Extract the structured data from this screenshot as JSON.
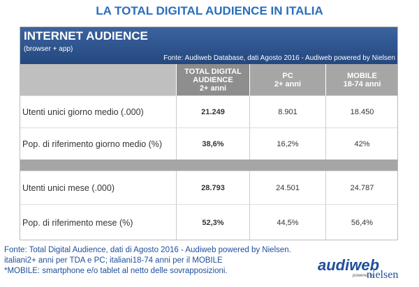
{
  "header": {
    "title": "LA TOTAL DIGITAL AUDIENCE IN ITALIA"
  },
  "panel": {
    "title": "INTERNET AUDIENCE",
    "subtitle": "(browser + app)",
    "source": "Fonte: Audiweb Database, dati Agosto 2016 - Audiweb powered by Nielsen"
  },
  "table": {
    "columns": [
      {
        "title": "TOTAL DIGITAL AUDIENCE",
        "subtitle": "2+ anni"
      },
      {
        "title": "PC",
        "subtitle": "2+ anni"
      },
      {
        "title": "MOBILE",
        "subtitle": "18-74 anni"
      }
    ],
    "rows": [
      {
        "label": "Utenti unici giorno medio (.000)",
        "values": [
          "21.249",
          "8.901",
          "18.450"
        ]
      },
      {
        "label": "Pop. di riferimento giorno medio (%)",
        "values": [
          "38,6%",
          "16,2%",
          "42%"
        ]
      },
      {
        "label": "Utenti unici mese (.000)",
        "values": [
          "28.793",
          "24.501",
          "24.787"
        ]
      },
      {
        "label": "Pop. di riferimento  mese (%)",
        "values": [
          "52,3%",
          "44,5%",
          "56,4%"
        ]
      }
    ]
  },
  "footer": {
    "lines": [
      "Fonte: Total Digital Audience, dati di Agosto 2016 - Audiweb powered by Nielsen.",
      "italiani2+ anni per TDA e PC; italiani18-74 anni per il MOBILE",
      "*MOBILE: smartphone e/o tablet al netto delle sovrapposizioni."
    ]
  },
  "logo": {
    "name": "audiweb",
    "powered": "powered by",
    "brand": "nielsen"
  }
}
